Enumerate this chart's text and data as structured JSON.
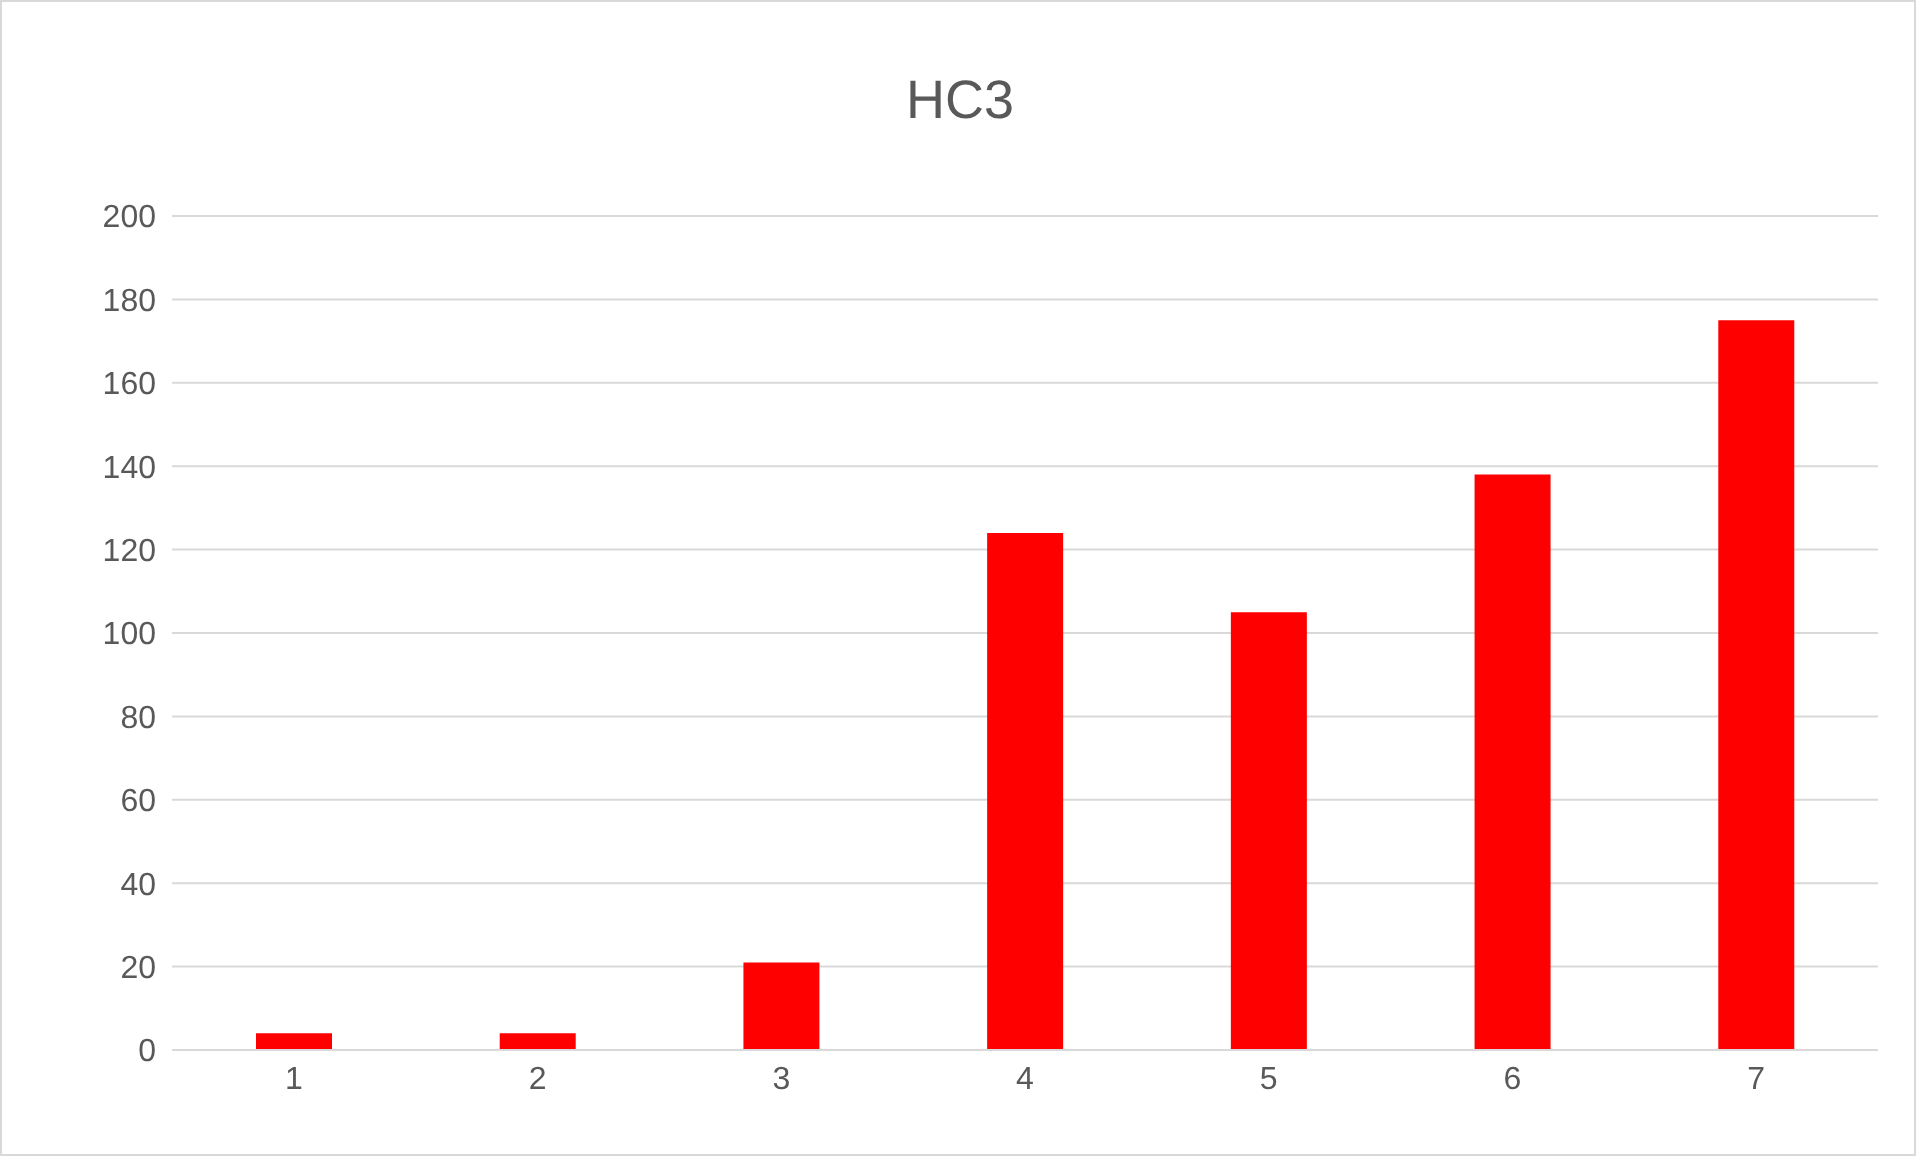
{
  "chart_data": {
    "type": "bar",
    "title": "HC3",
    "categories": [
      "1",
      "2",
      "3",
      "4",
      "5",
      "6",
      "7"
    ],
    "values": [
      4,
      4,
      21,
      124,
      105,
      138,
      175
    ],
    "color": "#ff0000",
    "ylim": [
      0,
      200
    ],
    "yticks": [
      0,
      20,
      40,
      60,
      80,
      100,
      120,
      140,
      160,
      180,
      200
    ],
    "grid": "y"
  }
}
